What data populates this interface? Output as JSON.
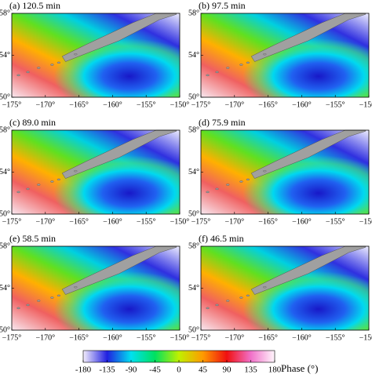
{
  "panels": [
    {
      "title": "(a) 120.5 min"
    },
    {
      "title": "(b) 97.5 min"
    },
    {
      "title": "(c) 89.0 min"
    },
    {
      "title": "(d) 75.9 min"
    },
    {
      "title": "(e) 58.5 min"
    },
    {
      "title": "(f) 46.5 min"
    }
  ],
  "xlim": [
    -175,
    -150
  ],
  "ylim": [
    50,
    58
  ],
  "xticks": [
    {
      "value": -175,
      "label": "−175°"
    },
    {
      "value": -170,
      "label": "−170°"
    },
    {
      "value": -165,
      "label": "−165°"
    },
    {
      "value": -160,
      "label": "−160°"
    },
    {
      "value": -155,
      "label": "−155°"
    },
    {
      "value": -150,
      "label": "−150°"
    }
  ],
  "yticks": [
    {
      "value": 50,
      "label": "50°"
    },
    {
      "value": 54,
      "label": "54°"
    },
    {
      "value": 58,
      "label": "58°"
    }
  ],
  "colorbar": {
    "label": "Phase (°)",
    "lim": [
      -180,
      180
    ],
    "ticks": [
      -180,
      -135,
      -90,
      -45,
      0,
      45,
      90,
      135,
      180
    ],
    "colors": [
      "#f4eefc",
      "#2020e0",
      "#00e0f0",
      "#00e060",
      "#c0f000",
      "#ff9a00",
      "#f01010",
      "#f070c8",
      "#fff6fc"
    ]
  }
}
